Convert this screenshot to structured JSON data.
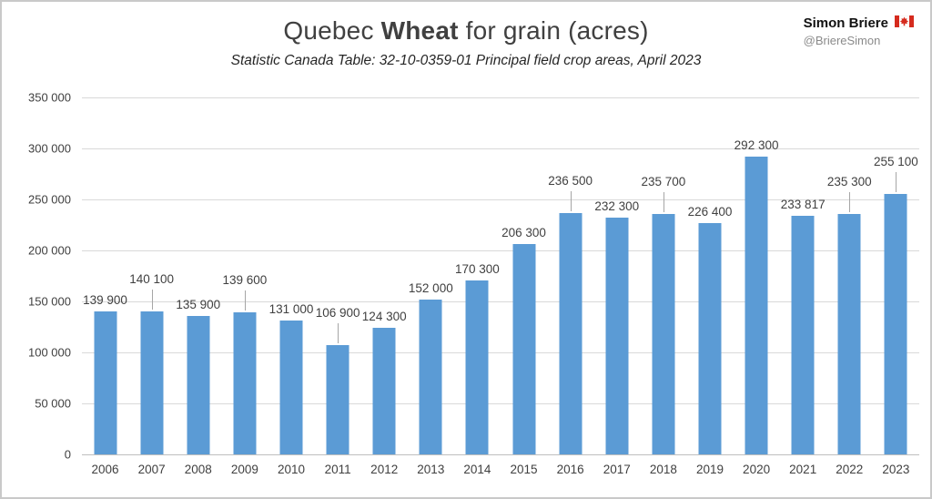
{
  "header": {
    "title_prefix": "Quebec ",
    "title_bold": "Wheat",
    "title_suffix": " for grain (acres)",
    "subtitle": "Statistic Canada Table: 32-10-0359-01 Principal field crop areas, April 2023",
    "attribution_name": "Simon Briere",
    "attribution_handle": "@BriereSimon",
    "flag_icon": "canada-flag-icon",
    "flag_color": "#d52b1e"
  },
  "chart_data": {
    "type": "bar",
    "title": "Quebec Wheat for grain (acres)",
    "subtitle": "Statistic Canada Table: 32-10-0359-01 Principal field crop areas, April 2023",
    "xlabel": "",
    "ylabel": "",
    "categories": [
      "2006",
      "2007",
      "2008",
      "2009",
      "2010",
      "2011",
      "2012",
      "2013",
      "2014",
      "2015",
      "2016",
      "2017",
      "2018",
      "2019",
      "2020",
      "2021",
      "2022",
      "2023"
    ],
    "values": [
      139900,
      140100,
      135900,
      139600,
      131000,
      106900,
      124300,
      152000,
      170300,
      206300,
      236500,
      232300,
      235700,
      226400,
      292300,
      233817,
      235300,
      255100
    ],
    "labels": [
      "139 900",
      "140 100",
      "135 900",
      "139 600",
      "131 000",
      "106 900",
      "124 300",
      "152 000",
      "170 300",
      "206 300",
      "236 500",
      "232 300",
      "235 700",
      "226 400",
      "292 300",
      "233 817",
      "235 300",
      "255 100"
    ],
    "leader_lines": [
      false,
      true,
      false,
      true,
      false,
      true,
      false,
      false,
      false,
      false,
      true,
      false,
      true,
      false,
      false,
      false,
      true,
      true
    ],
    "ylim": [
      0,
      350000
    ],
    "ytick_step": 50000,
    "ytick_labels": [
      "0",
      "50 000",
      "100 000",
      "150 000",
      "200 000",
      "250 000",
      "300 000",
      "350 000"
    ],
    "grid": true,
    "legend": false,
    "bar_color": "#5b9bd5"
  }
}
